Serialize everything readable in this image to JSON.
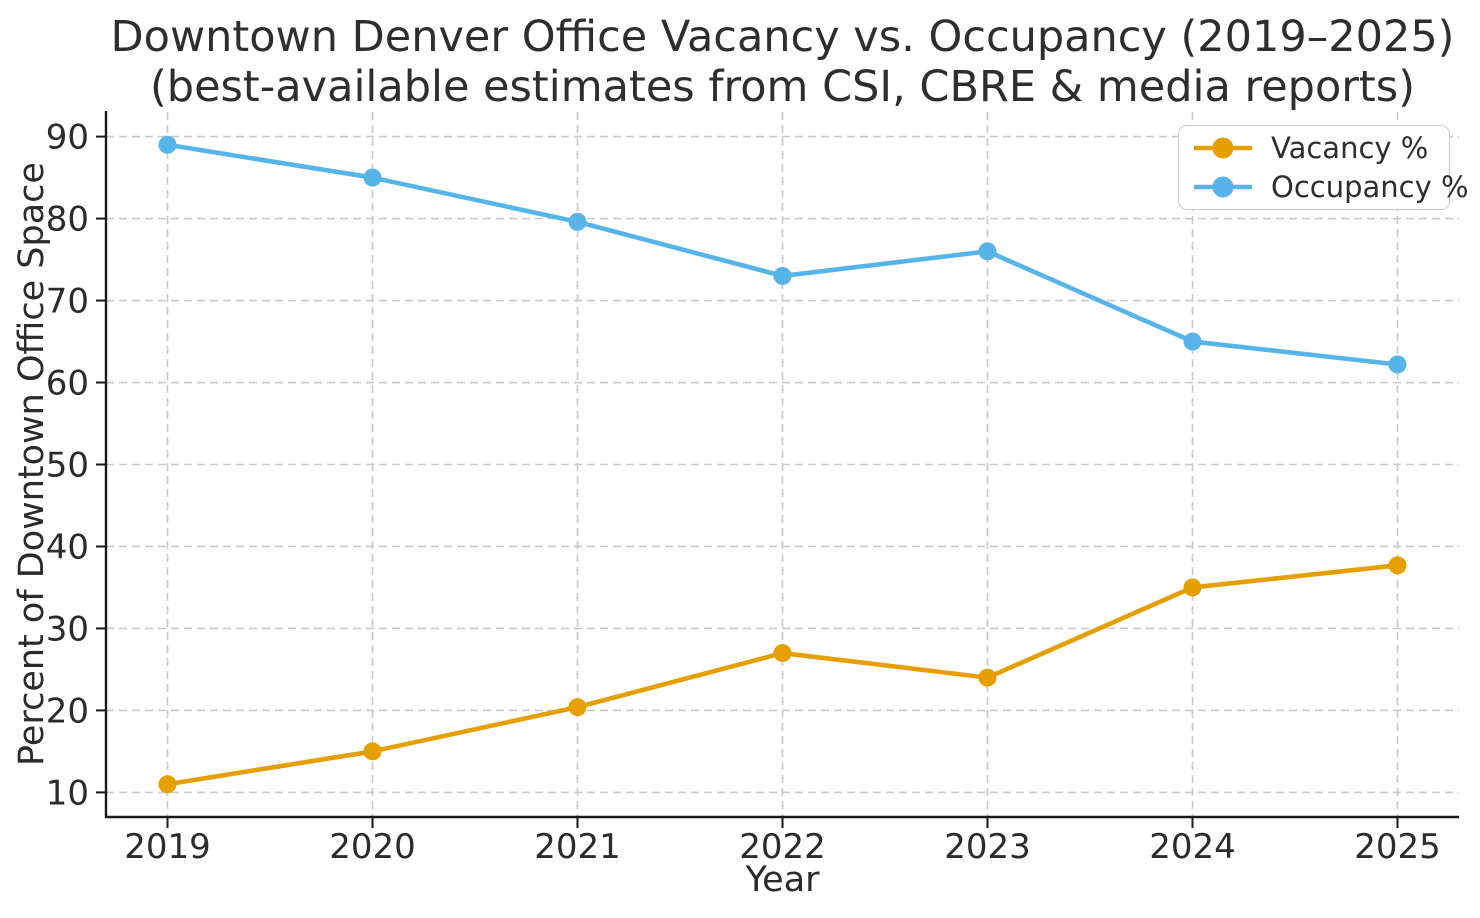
{
  "chart_data": {
    "type": "line",
    "title": "Downtown Denver Office Vacancy vs. Occupancy (2019–2025)",
    "subtitle": "(best-available estimates from CSI, CBRE & media reports)",
    "xlabel": "Year",
    "ylabel": "Percent of Downtown Office Space",
    "x": [
      2019,
      2020,
      2021,
      2022,
      2023,
      2024,
      2025
    ],
    "series": [
      {
        "name": "Vacancy %",
        "color": "#E69F00",
        "values": [
          11.0,
          15.0,
          20.4,
          27.0,
          24.0,
          35.0,
          37.7
        ]
      },
      {
        "name": "Occupancy %",
        "color": "#56B4E9",
        "values": [
          89.0,
          85.0,
          79.6,
          73.0,
          76.0,
          65.0,
          62.2
        ]
      }
    ],
    "xlim": [
      2018.7,
      2025.3
    ],
    "ylim": [
      7,
      93
    ],
    "yticks": [
      10,
      20,
      30,
      40,
      50,
      60,
      70,
      80,
      90
    ],
    "grid": true,
    "grid_style": "dashed",
    "legend_position": "upper right",
    "marker": "circle",
    "line_width": 4.6,
    "text_color": "#2b2b2b",
    "grid_color": "#c9c9c9"
  }
}
